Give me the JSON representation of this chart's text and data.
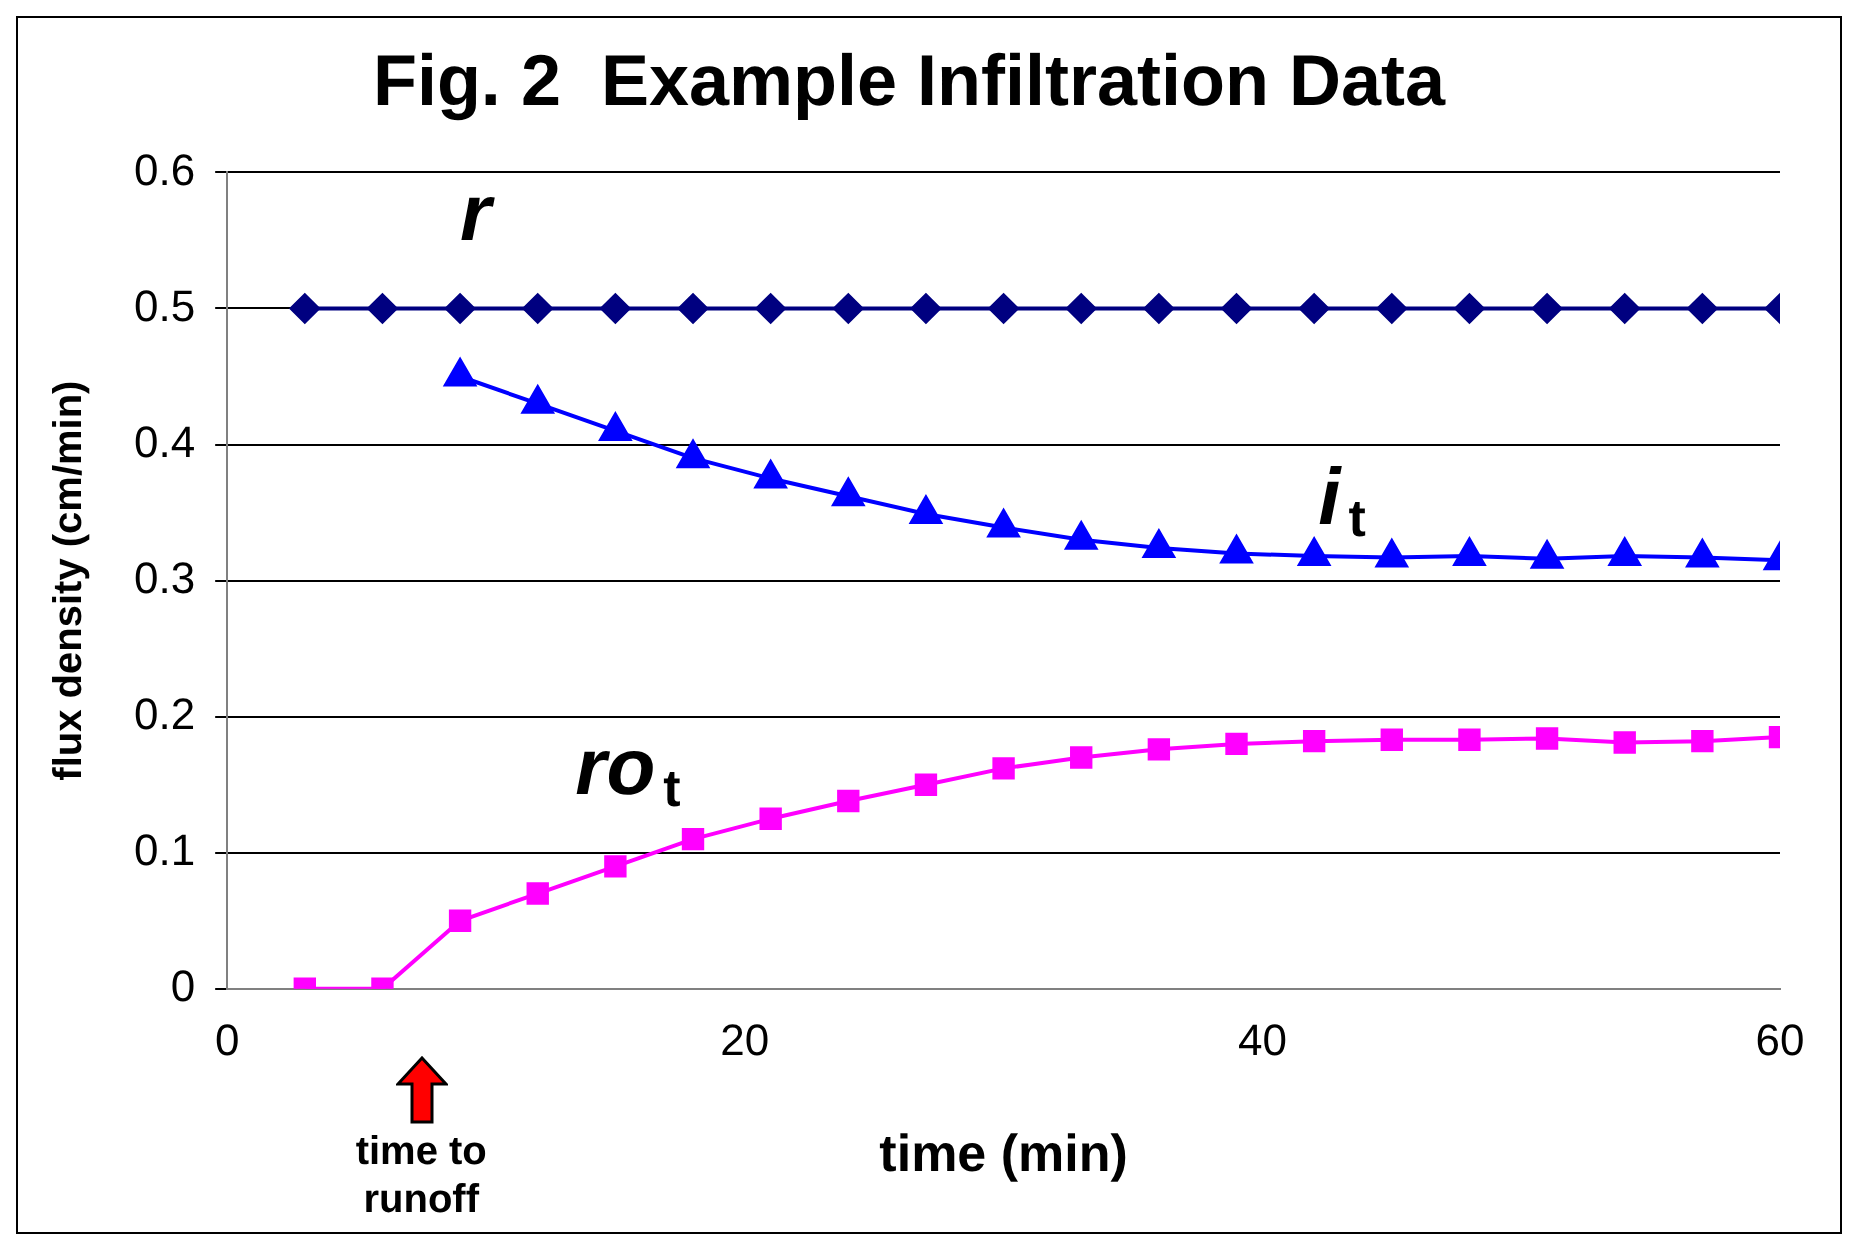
{
  "chart_data": {
    "type": "line",
    "title": "Fig. 2  Example Infiltration Data",
    "xlabel": "time (min)",
    "ylabel": "flux density (cm/min)",
    "xlim": [
      0,
      60
    ],
    "xticks": [
      0,
      20,
      40,
      60
    ],
    "ylim": [
      0,
      0.6
    ],
    "yticks": [
      0,
      0.1,
      0.2,
      0.3,
      0.4,
      0.5,
      0.6
    ],
    "grid": "y",
    "legend": false,
    "series": [
      {
        "name": "r",
        "color": "#000080",
        "marker": "diamond",
        "x": [
          3,
          6,
          9,
          12,
          15,
          18,
          21,
          24,
          27,
          30,
          33,
          36,
          39,
          42,
          45,
          48,
          51,
          54,
          57,
          60
        ],
        "values": [
          0.5,
          0.5,
          0.5,
          0.5,
          0.5,
          0.5,
          0.5,
          0.5,
          0.5,
          0.5,
          0.5,
          0.5,
          0.5,
          0.5,
          0.5,
          0.5,
          0.5,
          0.5,
          0.5,
          0.5
        ]
      },
      {
        "name": "i$_{t}$",
        "color": "#0000ff",
        "marker": "triangle",
        "x": [
          9,
          12,
          15,
          18,
          21,
          24,
          27,
          30,
          33,
          36,
          39,
          42,
          45,
          48,
          51,
          54,
          57,
          60
        ],
        "values": [
          0.45,
          0.43,
          0.41,
          0.39,
          0.375,
          0.362,
          0.349,
          0.339,
          0.33,
          0.324,
          0.32,
          0.318,
          0.317,
          0.318,
          0.316,
          0.318,
          0.317,
          0.315
        ]
      },
      {
        "name": "ro$_{t}$",
        "color": "#ff00ff",
        "marker": "square",
        "x": [
          3,
          6,
          9,
          12,
          15,
          18,
          21,
          24,
          27,
          30,
          33,
          36,
          39,
          42,
          45,
          48,
          51,
          54,
          57,
          60
        ],
        "values": [
          0,
          0,
          0.05,
          0.07,
          0.09,
          0.11,
          0.125,
          0.138,
          0.15,
          0.162,
          0.17,
          0.176,
          0.18,
          0.182,
          0.183,
          0.183,
          0.184,
          0.181,
          0.182,
          0.185
        ]
      }
    ],
    "annotations": [
      "time to runoff"
    ]
  }
}
